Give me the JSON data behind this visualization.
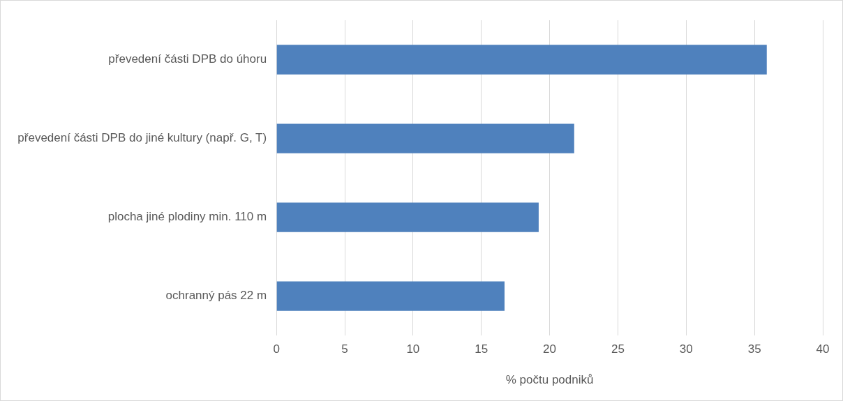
{
  "chart_data": {
    "type": "bar",
    "orientation": "horizontal",
    "xlabel": "% počtu podniků",
    "categories": [
      "převedení části DPB do úhoru",
      "převedení části DPB do jiné kultury (např. G, T)",
      "plocha jiné plodiny min. 110 m",
      "ochranný pás 22 m"
    ],
    "values": [
      35.9,
      21.8,
      19.2,
      16.7
    ],
    "color": "#4f81bd",
    "xlim": [
      0,
      40
    ],
    "xticks": [
      0,
      5,
      10,
      15,
      20,
      25,
      30,
      35,
      40
    ],
    "grid": "x",
    "legend": false
  }
}
